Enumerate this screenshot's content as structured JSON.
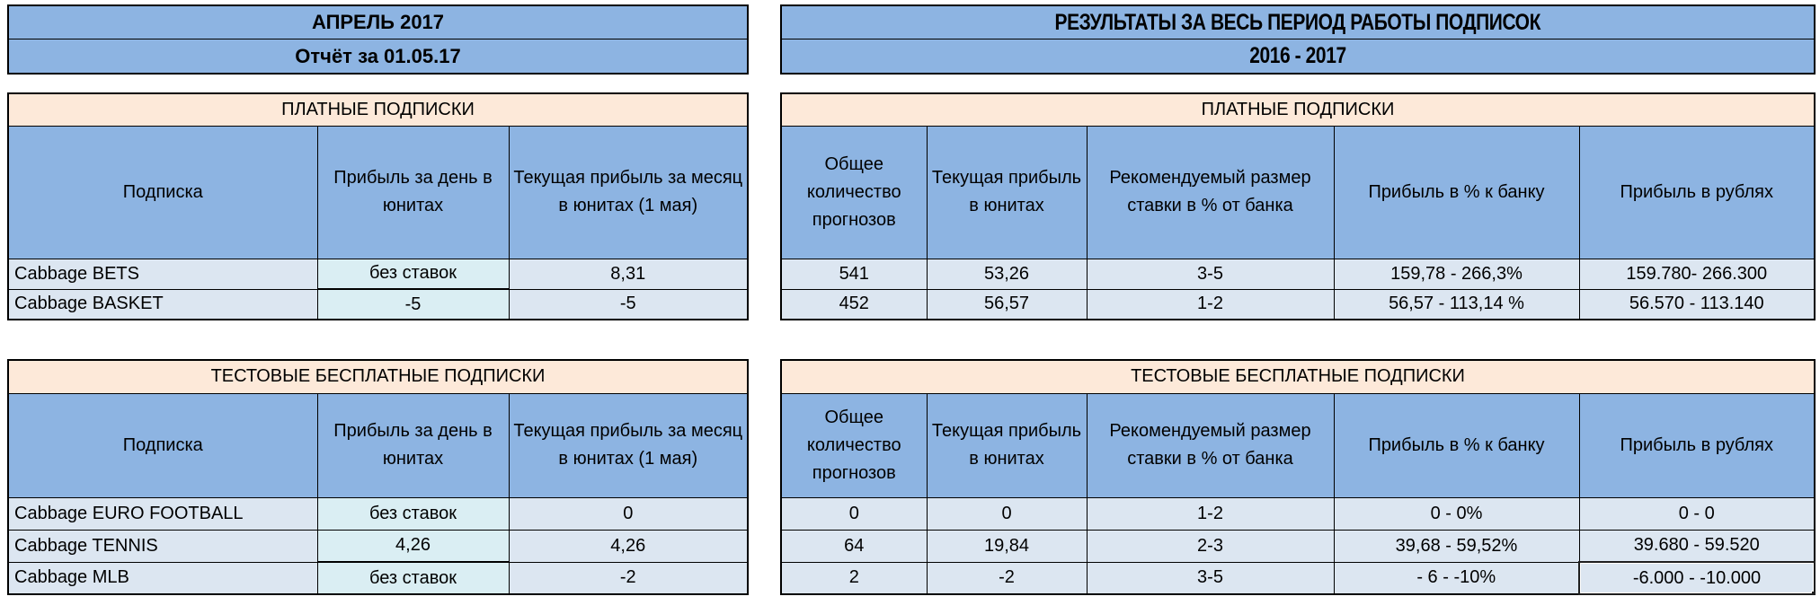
{
  "banners": {
    "left": {
      "line1": "АПРЕЛЬ 2017",
      "line2": "Отчёт за 01.05.17"
    },
    "right": {
      "line1": "РЕЗУЛЬТАТЫ ЗА ВЕСЬ ПЕРИОД РАБОТЫ ПОДПИСОК",
      "line2": "2016 - 2017"
    }
  },
  "left_tables": {
    "headers": [
      "Подписка",
      "Прибыль за день в юнитах",
      "Текущая прибыль за месяц в юнитах (1 мая)"
    ],
    "paid": {
      "title": "ПЛАТНЫЕ ПОДПИСКИ",
      "rows": [
        [
          "Cabbage BETS",
          "без ставок",
          "8,31"
        ],
        [
          "Cabbage BASKET",
          "-5",
          "-5"
        ]
      ]
    },
    "test": {
      "title": "ТЕСТОВЫЕ БЕСПЛАТНЫЕ ПОДПИСКИ",
      "rows": [
        [
          "Cabbage EURO FOOTBALL",
          "без ставок",
          "0"
        ],
        [
          "Cabbage TENNIS",
          "4,26",
          "4,26"
        ],
        [
          "Cabbage MLB",
          "без ставок",
          "-2"
        ]
      ]
    }
  },
  "right_tables": {
    "headers": [
      "Общее количество прогнозов",
      "Текущая прибыль в юнитах",
      "Рекомендуемый размер ставки в % от банка",
      "Прибыль в % к банку",
      "Прибыль в рублях"
    ],
    "paid": {
      "title": "ПЛАТНЫЕ ПОДПИСКИ",
      "rows": [
        [
          "541",
          "53,26",
          "3-5",
          "159,78 - 266,3%",
          "159.780- 266.300"
        ],
        [
          "452",
          "56,57",
          "1-2",
          "56,57 - 113,14 %",
          "56.570 - 113.140"
        ]
      ]
    },
    "test": {
      "title": "ТЕСТОВЫЕ БЕСПЛАТНЫЕ ПОДПИСКИ",
      "rows": [
        [
          "0",
          "0",
          "1-2",
          "0 - 0%",
          "0 - 0"
        ],
        [
          "64",
          "19,84",
          "2-3",
          "39,68 - 59,52%",
          "39.680 - 59.520"
        ],
        [
          "2",
          "-2",
          "3-5",
          "- 6 - -10%",
          "-6.000 - -10.000"
        ]
      ]
    }
  },
  "colors": {
    "header_blue": "#8db4e2",
    "row_blue": "#dce6f1",
    "row_aqua": "#daeef3",
    "title_peach": "#fde9d9",
    "border_black": "#000000",
    "selection_border": "#1f1f1f"
  }
}
